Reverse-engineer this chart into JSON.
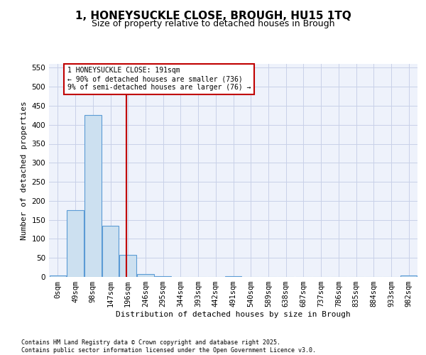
{
  "title1": "1, HONEYSUCKLE CLOSE, BROUGH, HU15 1TQ",
  "title2": "Size of property relative to detached houses in Brough",
  "xlabel": "Distribution of detached houses by size in Brough",
  "ylabel": "Number of detached properties",
  "bins": [
    "0sqm",
    "49sqm",
    "98sqm",
    "147sqm",
    "196sqm",
    "246sqm",
    "295sqm",
    "344sqm",
    "393sqm",
    "442sqm",
    "491sqm",
    "540sqm",
    "589sqm",
    "638sqm",
    "687sqm",
    "737sqm",
    "786sqm",
    "835sqm",
    "884sqm",
    "933sqm",
    "982sqm"
  ],
  "values": [
    3,
    176,
    425,
    135,
    58,
    8,
    1,
    0,
    0,
    0,
    2,
    0,
    0,
    0,
    0,
    0,
    0,
    0,
    0,
    0,
    3
  ],
  "bar_color": "#cce0f0",
  "bar_edge_color": "#5b9bd5",
  "vline_color": "#c00000",
  "annotation_text": "1 HONEYSUCKLE CLOSE: 191sqm\n← 90% of detached houses are smaller (736)\n9% of semi-detached houses are larger (76) →",
  "annotation_box_color": "#ffffff",
  "annotation_box_edge": "#c00000",
  "ylim": [
    0,
    560
  ],
  "yticks": [
    0,
    50,
    100,
    150,
    200,
    250,
    300,
    350,
    400,
    450,
    500,
    550
  ],
  "footer1": "Contains HM Land Registry data © Crown copyright and database right 2025.",
  "footer2": "Contains public sector information licensed under the Open Government Licence v3.0.",
  "bg_color": "#eef2fb",
  "grid_color": "#c8d0e8",
  "title_fontsize": 11,
  "subtitle_fontsize": 9,
  "axis_fontsize": 8,
  "tick_fontsize": 7.5
}
